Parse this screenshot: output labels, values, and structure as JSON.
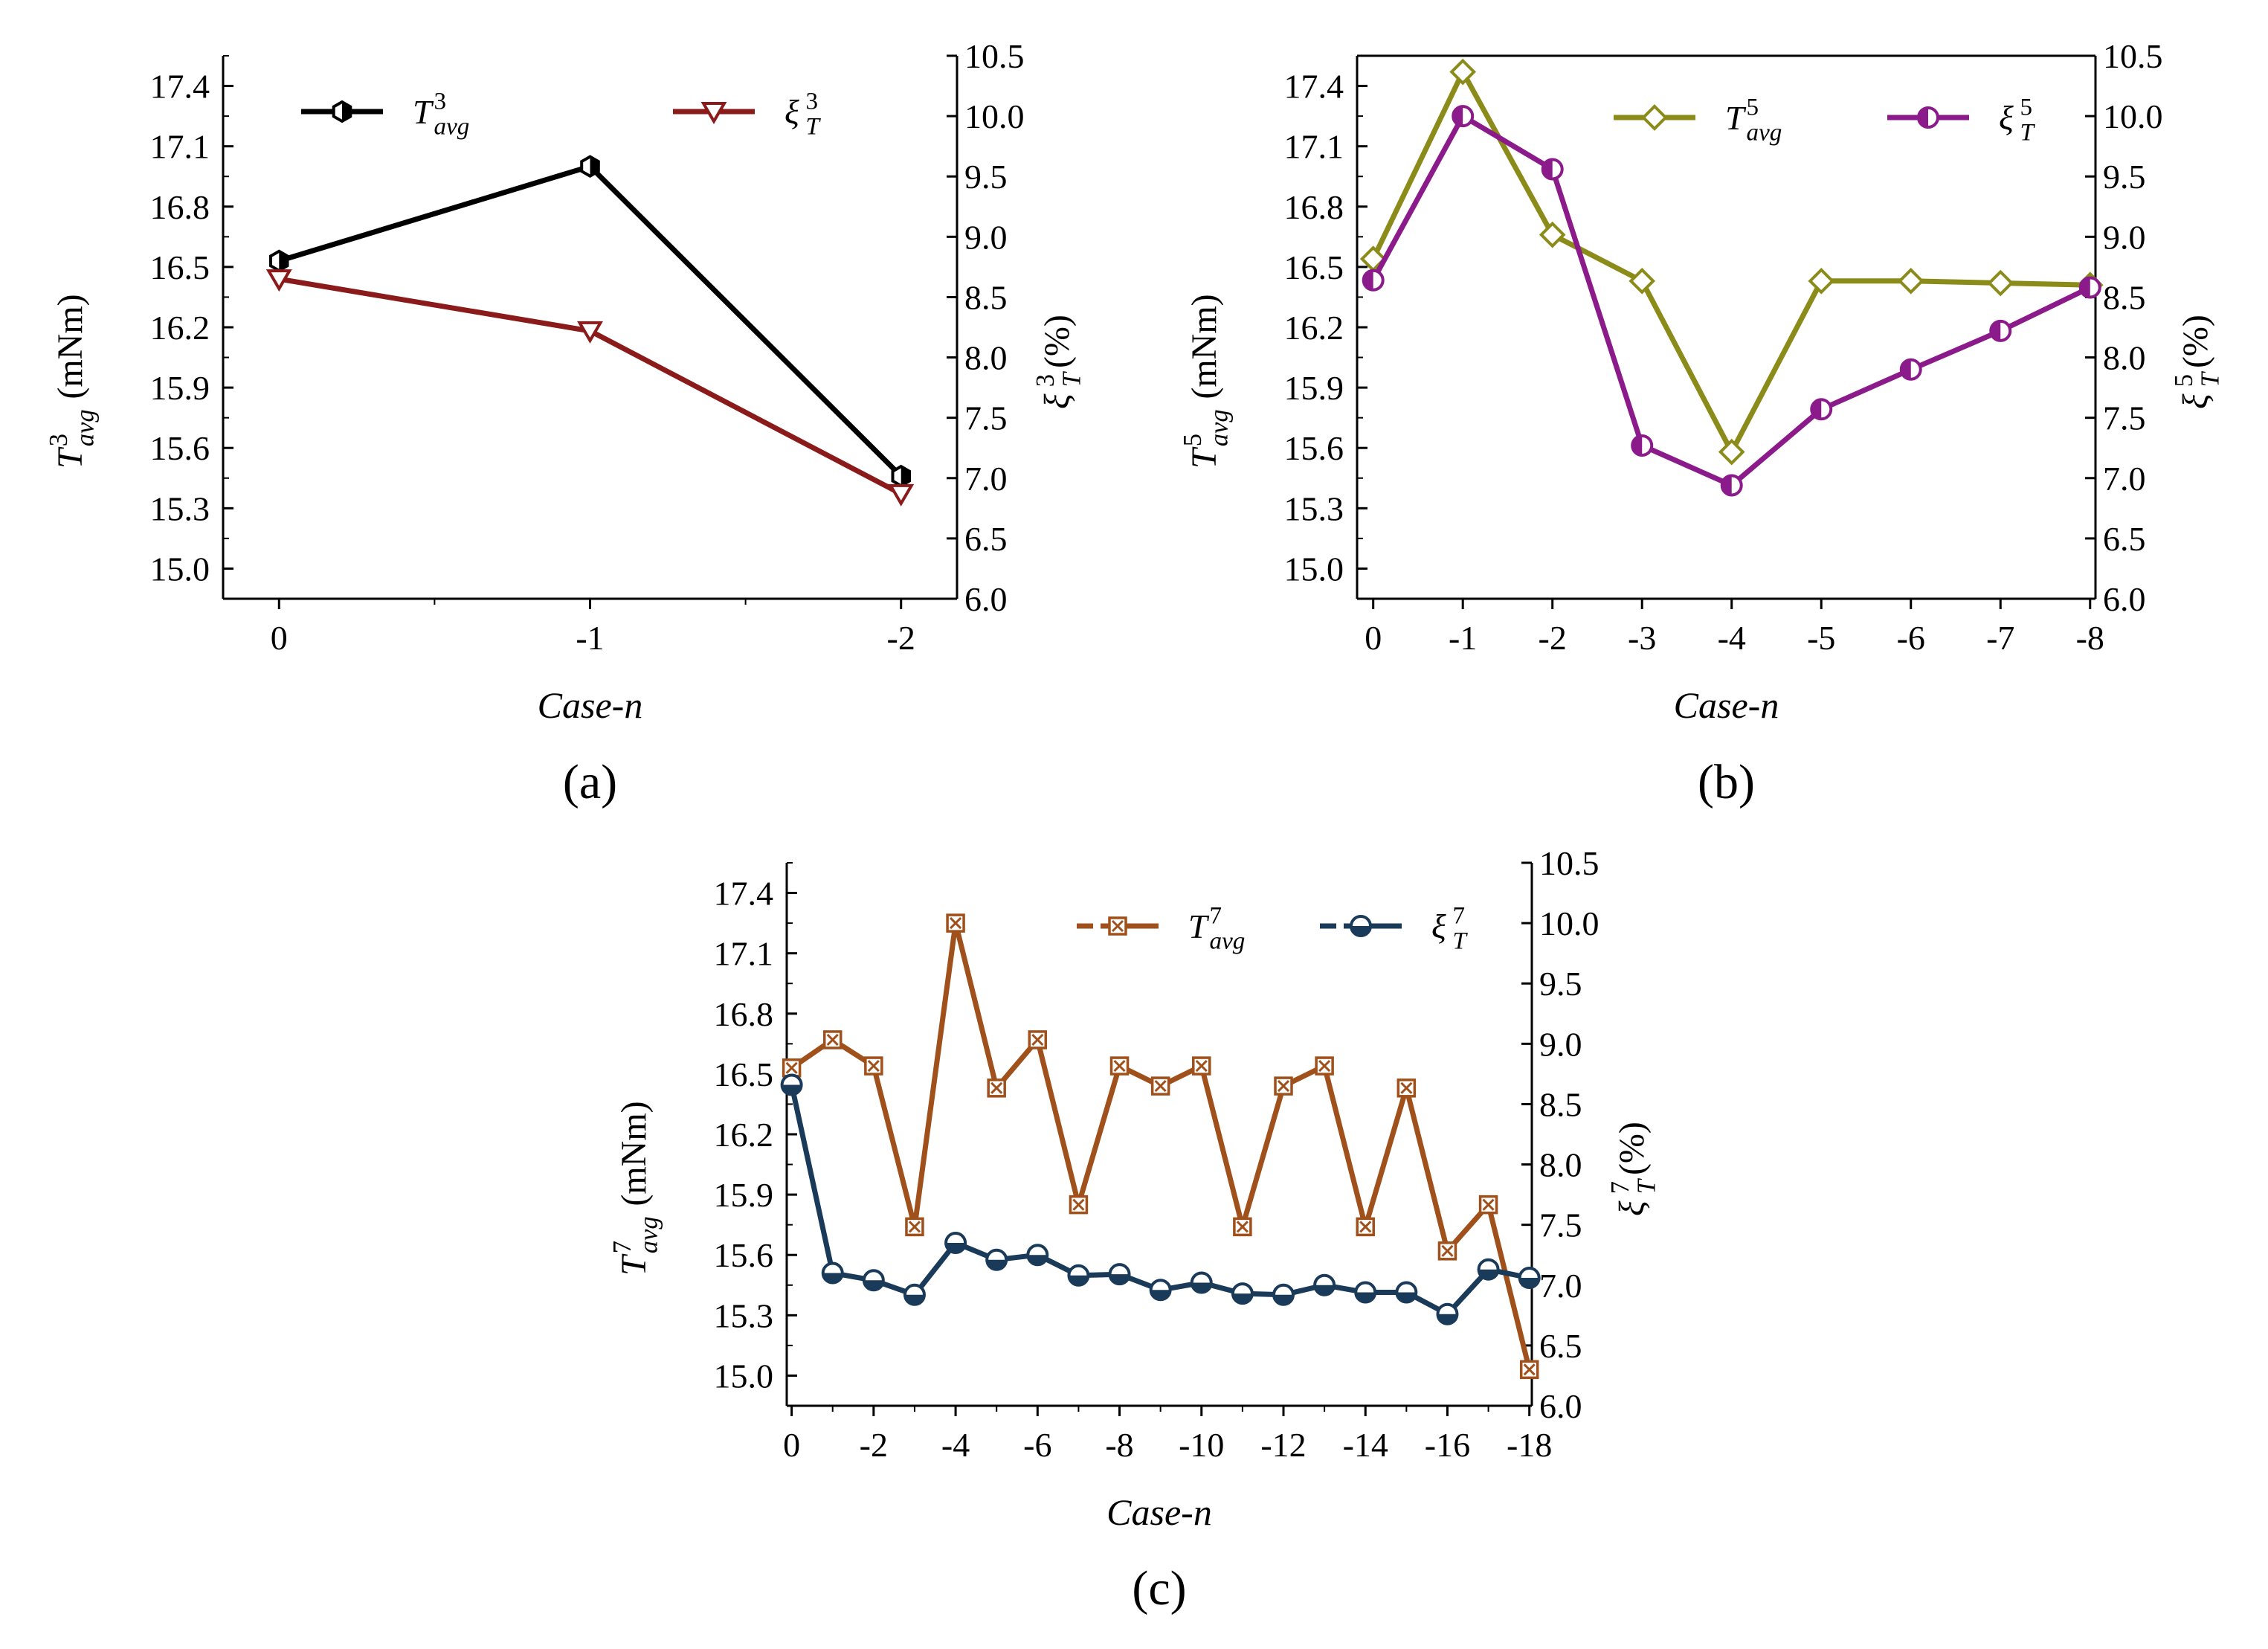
{
  "chart_data": [
    {
      "id": "a",
      "type": "line",
      "panel_label": "(a)",
      "xlabel": "Case-n",
      "ylabel_left": {
        "sym": "T",
        "sup": "3",
        "sub": "avg",
        "unit": " (mNm)"
      },
      "ylabel_right": {
        "sym": "ξ",
        "sup": "3",
        "sub": "T",
        "unit": " (%)"
      },
      "x": [
        0,
        -1,
        -2
      ],
      "x_ticks": [
        0,
        -1,
        -2
      ],
      "x_tick_labels": [
        "0",
        "-1",
        "-2"
      ],
      "x_minor_ticks": [
        -0.5,
        -1.5
      ],
      "xlim": [
        0.18,
        -2.18
      ],
      "ylim_left": [
        14.85,
        17.55
      ],
      "yticks_left": [
        "15.0",
        "15.3",
        "15.6",
        "15.9",
        "16.2",
        "16.5",
        "16.8",
        "17.1",
        "17.4"
      ],
      "ylim_right": [
        6.0,
        10.5
      ],
      "yticks_right": [
        "6.0",
        "6.5",
        "7.0",
        "7.5",
        "8.0",
        "8.5",
        "9.0",
        "9.5",
        "10.0",
        "10.5"
      ],
      "series": [
        {
          "name": "T3avg",
          "axis": "left",
          "color": "#000000",
          "marker": "hexagon",
          "dashed": false,
          "legend": {
            "sym": "T",
            "sup": "3",
            "sub": "avg"
          },
          "values": [
            16.53,
            17.0,
            15.46
          ]
        },
        {
          "name": "xi3T",
          "axis": "right",
          "color": "#8B1A1A",
          "marker": "triangle-down",
          "dashed": false,
          "legend": {
            "sym": "ξ",
            "sup": "3",
            "sub": "T"
          },
          "values": [
            8.65,
            8.22,
            6.87
          ]
        }
      ]
    },
    {
      "id": "b",
      "type": "line",
      "panel_label": "(b)",
      "xlabel": "Case-n",
      "ylabel_left": {
        "sym": "T",
        "sup": "5",
        "sub": "avg",
        "unit": " (mNm)"
      },
      "ylabel_right": {
        "sym": "ξ",
        "sup": "5",
        "sub": "T",
        "unit": " (%)"
      },
      "x": [
        0,
        -1,
        -2,
        -3,
        -4,
        -5,
        -6,
        -7,
        -8
      ],
      "x_ticks": [
        0,
        -1,
        -2,
        -3,
        -4,
        -5,
        -6,
        -7,
        -8
      ],
      "x_tick_labels": [
        "0",
        "-1",
        "-2",
        "-3",
        "-4",
        "-5",
        "-6",
        "-7",
        "-8"
      ],
      "x_minor_ticks": [],
      "xlim": [
        0.18,
        -8.06
      ],
      "ylim_left": [
        14.85,
        17.55
      ],
      "yticks_left": [
        "15.0",
        "15.3",
        "15.6",
        "15.9",
        "16.2",
        "16.5",
        "16.8",
        "17.1",
        "17.4"
      ],
      "ylim_right": [
        6.0,
        10.5
      ],
      "yticks_right": [
        "6.0",
        "6.5",
        "7.0",
        "7.5",
        "8.0",
        "8.5",
        "9.0",
        "9.5",
        "10.0",
        "10.5"
      ],
      "series": [
        {
          "name": "T5avg",
          "axis": "left",
          "color": "#8B8B1A",
          "marker": "diamond",
          "dashed": false,
          "legend": {
            "sym": "T",
            "sup": "5",
            "sub": "avg"
          },
          "values": [
            16.54,
            17.47,
            16.66,
            16.43,
            15.58,
            16.43,
            16.43,
            16.42,
            16.41
          ]
        },
        {
          "name": "xi5T",
          "axis": "right",
          "color": "#8B1A8B",
          "marker": "circle-half-left",
          "dashed": false,
          "legend": {
            "sym": "ξ",
            "sup": "5",
            "sub": "T"
          },
          "values": [
            8.64,
            10.0,
            9.56,
            7.27,
            6.94,
            7.57,
            7.9,
            8.22,
            8.58
          ]
        }
      ]
    },
    {
      "id": "c",
      "type": "line",
      "panel_label": "(c)",
      "xlabel": "Case-n",
      "ylabel_left": {
        "sym": "T",
        "sup": "7",
        "sub": "avg",
        "unit": " (mNm)"
      },
      "ylabel_right": {
        "sym": "ξ",
        "sup": "7",
        "sub": "T",
        "unit": " (%)"
      },
      "x": [
        0,
        -1,
        -2,
        -3,
        -4,
        -5,
        -6,
        -7,
        -8,
        -9,
        -10,
        -11,
        -12,
        -13,
        -14,
        -15,
        -16,
        -17,
        -18
      ],
      "x_ticks": [
        0,
        -2,
        -4,
        -6,
        -8,
        -10,
        -12,
        -14,
        -16,
        -18
      ],
      "x_tick_labels": [
        "0",
        "-2",
        "-4",
        "-6",
        "-8",
        "-10",
        "-12",
        "-14",
        "-16",
        "-18"
      ],
      "x_minor_ticks": [
        -1,
        -3,
        -5,
        -7,
        -9,
        -11,
        -13,
        -15,
        -17
      ],
      "xlim": [
        0.12,
        -18.06
      ],
      "ylim_left": [
        14.85,
        17.55
      ],
      "yticks_left": [
        "15.0",
        "15.3",
        "15.6",
        "15.9",
        "16.2",
        "16.5",
        "16.8",
        "17.1",
        "17.4"
      ],
      "ylim_right": [
        6.0,
        10.5
      ],
      "yticks_right": [
        "6.0",
        "6.5",
        "7.0",
        "7.5",
        "8.0",
        "8.5",
        "9.0",
        "9.5",
        "10.0",
        "10.5"
      ],
      "series": [
        {
          "name": "T7avg",
          "axis": "left",
          "color": "#A0501A",
          "marker": "square-x",
          "dashed": true,
          "legend": {
            "sym": "T",
            "sup": "7",
            "sub": "avg"
          },
          "values": [
            16.53,
            16.67,
            16.54,
            15.74,
            17.25,
            16.43,
            16.67,
            15.85,
            16.54,
            16.44,
            16.54,
            15.74,
            16.44,
            16.54,
            15.74,
            16.43,
            15.62,
            15.85,
            15.03
          ]
        },
        {
          "name": "xi7T",
          "axis": "right",
          "color": "#1A3A5A",
          "marker": "circle-half-bottom",
          "dashed": true,
          "legend": {
            "sym": "ξ",
            "sup": "7",
            "sub": "T"
          },
          "values": [
            8.66,
            7.1,
            7.04,
            6.92,
            7.35,
            7.21,
            7.25,
            7.08,
            7.09,
            6.96,
            7.02,
            6.93,
            6.92,
            7.0,
            6.94,
            6.94,
            6.76,
            7.13,
            7.06
          ]
        }
      ]
    }
  ]
}
